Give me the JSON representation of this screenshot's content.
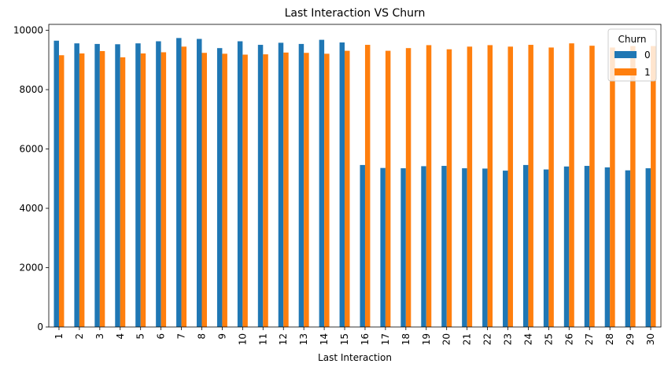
{
  "chart_data": {
    "type": "bar",
    "title": "Last Interaction VS Churn",
    "xlabel": "Last Interaction",
    "ylabel": "",
    "ylim": [
      0,
      10200
    ],
    "yticks": [
      0,
      2000,
      4000,
      6000,
      8000,
      10000
    ],
    "categories": [
      "1",
      "2",
      "3",
      "4",
      "5",
      "6",
      "7",
      "8",
      "9",
      "10",
      "11",
      "12",
      "13",
      "14",
      "15",
      "16",
      "17",
      "18",
      "19",
      "20",
      "21",
      "22",
      "23",
      "24",
      "25",
      "26",
      "27",
      "28",
      "29",
      "30"
    ],
    "legend": {
      "title": "Churn",
      "position": "top-right"
    },
    "series": [
      {
        "name": "0",
        "color": "#1f77b4",
        "values": [
          9650,
          9560,
          9540,
          9530,
          9560,
          9630,
          9740,
          9710,
          9400,
          9630,
          9510,
          9580,
          9540,
          9680,
          9590,
          5460,
          5360,
          5350,
          5420,
          5430,
          5350,
          5340,
          5270,
          5460,
          5310,
          5410,
          5430,
          5380,
          5280,
          5350
        ]
      },
      {
        "name": "1",
        "color": "#ff7f0e",
        "values": [
          9160,
          9220,
          9300,
          9090,
          9220,
          9260,
          9450,
          9240,
          9210,
          9180,
          9190,
          9250,
          9240,
          9210,
          9310,
          9510,
          9310,
          9400,
          9500,
          9360,
          9450,
          9500,
          9450,
          9510,
          9420,
          9560,
          9480,
          9420,
          9470,
          9470
        ]
      }
    ]
  }
}
